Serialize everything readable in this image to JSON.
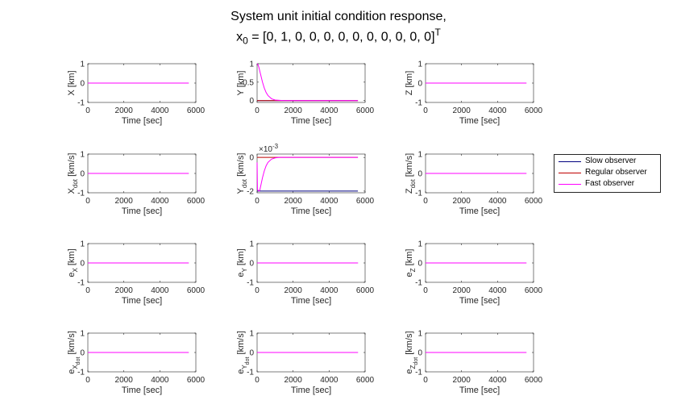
{
  "title": {
    "line1": "System unit initial condition response,",
    "line2_prefix": "x",
    "line2_sub": "0",
    "line2_body": " = [0, 1, 0, 0, 0, 0, 0, 0, 0, 0, 0, 0]",
    "line2_sup": "T"
  },
  "legend": {
    "entries": [
      {
        "label": "Slow observer",
        "color": "#00007f"
      },
      {
        "label": "Regular observer",
        "color": "#bf0000"
      },
      {
        "label": "Fast observer",
        "color": "#ff00ff"
      }
    ]
  },
  "chart_data": [
    {
      "type": "line",
      "ylabel": {
        "main": "X",
        "sub": "",
        "unit": " [km]"
      },
      "xlabel": "Time [sec]",
      "xlim": [
        0,
        6000
      ],
      "xticks": [
        0,
        2000,
        4000,
        6000
      ],
      "ylim": [
        -1,
        1
      ],
      "yticks": [
        -1,
        0,
        1
      ],
      "multiplier": "",
      "series": [
        {
          "name": "Slow observer",
          "x": [
            0,
            5600
          ],
          "y": [
            0,
            0
          ]
        },
        {
          "name": "Regular observer",
          "x": [
            0,
            5600
          ],
          "y": [
            0,
            0
          ]
        },
        {
          "name": "Fast observer",
          "x": [
            0,
            5600
          ],
          "y": [
            0,
            0
          ]
        }
      ]
    },
    {
      "type": "line",
      "ylabel": {
        "main": "Y",
        "sub": "",
        "unit": " [km]"
      },
      "xlabel": "Time [sec]",
      "xlim": [
        0,
        6000
      ],
      "xticks": [
        0,
        2000,
        4000,
        6000
      ],
      "ylim": [
        -0.05,
        1
      ],
      "yticks": [
        0,
        0.5,
        1
      ],
      "multiplier": "",
      "series": [
        {
          "name": "Slow observer",
          "x": [
            0,
            5600
          ],
          "y": [
            0,
            0
          ]
        },
        {
          "name": "Regular observer",
          "x": [
            0,
            5600
          ],
          "y": [
            0,
            0
          ]
        },
        {
          "name": "Fast observer",
          "x": [
            0,
            50,
            100,
            200,
            300,
            400,
            500,
            600,
            800,
            1000,
            1500,
            2000,
            5600
          ],
          "y": [
            1,
            0.97,
            0.9,
            0.7,
            0.5,
            0.34,
            0.22,
            0.14,
            0.05,
            0.015,
            0,
            0,
            0
          ]
        }
      ]
    },
    {
      "type": "line",
      "ylabel": {
        "main": "Z",
        "sub": "",
        "unit": " [km]"
      },
      "xlabel": "Time [sec]",
      "xlim": [
        0,
        6000
      ],
      "xticks": [
        0,
        2000,
        4000,
        6000
      ],
      "ylim": [
        -1,
        1
      ],
      "yticks": [
        -1,
        0,
        1
      ],
      "multiplier": "",
      "series": [
        {
          "name": "Slow observer",
          "x": [
            0,
            5600
          ],
          "y": [
            0,
            0
          ]
        },
        {
          "name": "Regular observer",
          "x": [
            0,
            5600
          ],
          "y": [
            0,
            0
          ]
        },
        {
          "name": "Fast observer",
          "x": [
            0,
            5600
          ],
          "y": [
            0,
            0
          ]
        }
      ]
    },
    {
      "type": "line",
      "ylabel": {
        "main": "X",
        "sub": "dot",
        "unit": " [km/s]"
      },
      "xlabel": "Time [sec]",
      "xlim": [
        0,
        6000
      ],
      "xticks": [
        0,
        2000,
        4000,
        6000
      ],
      "ylim": [
        -1,
        1
      ],
      "yticks": [
        -1,
        0,
        1
      ],
      "multiplier": "",
      "series": [
        {
          "name": "Slow observer",
          "x": [
            0,
            5600
          ],
          "y": [
            0,
            0
          ]
        },
        {
          "name": "Regular observer",
          "x": [
            0,
            5600
          ],
          "y": [
            0,
            0
          ]
        },
        {
          "name": "Fast observer",
          "x": [
            0,
            5600
          ],
          "y": [
            0,
            0
          ]
        }
      ]
    },
    {
      "type": "line",
      "ylabel": {
        "main": "Y",
        "sub": "dot",
        "unit": " [km/s]"
      },
      "xlabel": "Time [sec]",
      "xlim": [
        0,
        6000
      ],
      "xticks": [
        0,
        2000,
        4000,
        6000
      ],
      "ylim": [
        -2.1,
        0.2
      ],
      "yticks": [
        -2,
        0
      ],
      "multiplier": "×10",
      "multiplier_exp": "-3",
      "series": [
        {
          "name": "Slow observer",
          "x": [
            0,
            5600
          ],
          "y": [
            -2,
            -2
          ]
        },
        {
          "name": "Regular observer",
          "x": [
            0,
            5600
          ],
          "y": [
            0,
            0
          ]
        },
        {
          "name": "Fast observer",
          "x": [
            0,
            20,
            100,
            150,
            200,
            300,
            400,
            500,
            600,
            800,
            1000,
            1200,
            1500,
            5600
          ],
          "y": [
            -0.3,
            -1.9,
            -2.0,
            -1.95,
            -1.7,
            -1.2,
            -0.8,
            -0.5,
            -0.3,
            -0.1,
            -0.03,
            0,
            0,
            0
          ]
        }
      ]
    },
    {
      "type": "line",
      "ylabel": {
        "main": "Z",
        "sub": "dot",
        "unit": " [km/s]"
      },
      "xlabel": "Time [sec]",
      "xlim": [
        0,
        6000
      ],
      "xticks": [
        0,
        2000,
        4000,
        6000
      ],
      "ylim": [
        -1,
        1
      ],
      "yticks": [
        -1,
        0,
        1
      ],
      "multiplier": "",
      "series": [
        {
          "name": "Slow observer",
          "x": [
            0,
            5600
          ],
          "y": [
            0,
            0
          ]
        },
        {
          "name": "Regular observer",
          "x": [
            0,
            5600
          ],
          "y": [
            0,
            0
          ]
        },
        {
          "name": "Fast observer",
          "x": [
            0,
            5600
          ],
          "y": [
            0,
            0
          ]
        }
      ]
    },
    {
      "type": "line",
      "ylabel": {
        "main": "e",
        "sub": "X",
        "unit": " [km]"
      },
      "xlabel": "Time [sec]",
      "xlim": [
        0,
        6000
      ],
      "xticks": [
        0,
        2000,
        4000,
        6000
      ],
      "ylim": [
        -1,
        1
      ],
      "yticks": [
        -1,
        0,
        1
      ],
      "multiplier": "",
      "series": [
        {
          "name": "Slow observer",
          "x": [
            0,
            5600
          ],
          "y": [
            0,
            0
          ]
        },
        {
          "name": "Regular observer",
          "x": [
            0,
            5600
          ],
          "y": [
            0,
            0
          ]
        },
        {
          "name": "Fast observer",
          "x": [
            0,
            5600
          ],
          "y": [
            0,
            0
          ]
        }
      ]
    },
    {
      "type": "line",
      "ylabel": {
        "main": "e",
        "sub": "Y",
        "unit": " [km]"
      },
      "xlabel": "Time [sec]",
      "xlim": [
        0,
        6000
      ],
      "xticks": [
        0,
        2000,
        4000,
        6000
      ],
      "ylim": [
        -1,
        1
      ],
      "yticks": [
        -1,
        0,
        1
      ],
      "multiplier": "",
      "series": [
        {
          "name": "Slow observer",
          "x": [
            0,
            5600
          ],
          "y": [
            0,
            0
          ]
        },
        {
          "name": "Regular observer",
          "x": [
            0,
            5600
          ],
          "y": [
            0,
            0
          ]
        },
        {
          "name": "Fast observer",
          "x": [
            0,
            5600
          ],
          "y": [
            0,
            0
          ]
        }
      ]
    },
    {
      "type": "line",
      "ylabel": {
        "main": "e",
        "sub": "Z",
        "unit": " [km]"
      },
      "xlabel": "Time [sec]",
      "xlim": [
        0,
        6000
      ],
      "xticks": [
        0,
        2000,
        4000,
        6000
      ],
      "ylim": [
        -1,
        1
      ],
      "yticks": [
        -1,
        0,
        1
      ],
      "multiplier": "",
      "series": [
        {
          "name": "Slow observer",
          "x": [
            0,
            5600
          ],
          "y": [
            0,
            0
          ]
        },
        {
          "name": "Regular observer",
          "x": [
            0,
            5600
          ],
          "y": [
            0,
            0
          ]
        },
        {
          "name": "Fast observer",
          "x": [
            0,
            5600
          ],
          "y": [
            0,
            0
          ]
        }
      ]
    },
    {
      "type": "line",
      "ylabel": {
        "main": "e",
        "sub": "X",
        "subsub": "dot",
        "unit": " [km/s]"
      },
      "xlabel": "Time [sec]",
      "xlim": [
        0,
        6000
      ],
      "xticks": [
        0,
        2000,
        4000,
        6000
      ],
      "ylim": [
        -1,
        1
      ],
      "yticks": [
        -1,
        0,
        1
      ],
      "multiplier": "",
      "series": [
        {
          "name": "Slow observer",
          "x": [
            0,
            5600
          ],
          "y": [
            0,
            0
          ]
        },
        {
          "name": "Regular observer",
          "x": [
            0,
            5600
          ],
          "y": [
            0,
            0
          ]
        },
        {
          "name": "Fast observer",
          "x": [
            0,
            5600
          ],
          "y": [
            0,
            0
          ]
        }
      ]
    },
    {
      "type": "line",
      "ylabel": {
        "main": "e",
        "sub": "Y",
        "subsub": "dot",
        "unit": " [km/s]"
      },
      "xlabel": "Time [sec]",
      "xlim": [
        0,
        6000
      ],
      "xticks": [
        0,
        2000,
        4000,
        6000
      ],
      "ylim": [
        -1,
        1
      ],
      "yticks": [
        -1,
        0,
        1
      ],
      "multiplier": "",
      "series": [
        {
          "name": "Slow observer",
          "x": [
            0,
            5600
          ],
          "y": [
            0,
            0
          ]
        },
        {
          "name": "Regular observer",
          "x": [
            0,
            5600
          ],
          "y": [
            0,
            0
          ]
        },
        {
          "name": "Fast observer",
          "x": [
            0,
            5600
          ],
          "y": [
            0,
            0
          ]
        }
      ]
    },
    {
      "type": "line",
      "ylabel": {
        "main": "e",
        "sub": "Z",
        "subsub": "dot",
        "unit": " [km/s]"
      },
      "xlabel": "Time [sec]",
      "xlim": [
        0,
        6000
      ],
      "xticks": [
        0,
        2000,
        4000,
        6000
      ],
      "ylim": [
        -1,
        1
      ],
      "yticks": [
        -1,
        0,
        1
      ],
      "multiplier": "",
      "series": [
        {
          "name": "Slow observer",
          "x": [
            0,
            5600
          ],
          "y": [
            0,
            0
          ]
        },
        {
          "name": "Regular observer",
          "x": [
            0,
            5600
          ],
          "y": [
            0,
            0
          ]
        },
        {
          "name": "Fast observer",
          "x": [
            0,
            5600
          ],
          "y": [
            0,
            0
          ]
        }
      ]
    }
  ]
}
